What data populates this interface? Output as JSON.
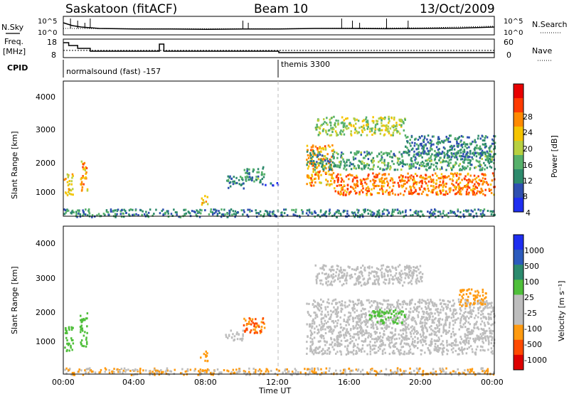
{
  "header": {
    "station": "Saskatoon (fitACF)",
    "beam": "Beam 10",
    "date": "13/Oct/2009"
  },
  "noise_panel": {
    "left_label": "N.Sky",
    "right_label": "N.Search",
    "left_ticks": [
      "10^5",
      "10^0"
    ],
    "right_ticks": [
      "10^5",
      "10^0"
    ]
  },
  "freq_panel": {
    "left_label_1": "Freq.",
    "left_label_2": "[MHz]",
    "right_label": "Nave",
    "left_ticks": [
      "18",
      "8"
    ],
    "right_ticks": [
      "60",
      "0"
    ]
  },
  "cpid_panel": {
    "label": "CPID",
    "mode_1": "normalsound (fast) -157",
    "mode_2": "themis 3300"
  },
  "x_axis": {
    "title": "Time UT",
    "ticks": [
      "00:00",
      "04:00",
      "08:00",
      "12:00",
      "16:00",
      "20:00",
      "00:00"
    ]
  },
  "power_panel": {
    "ylabel": "Slant Range [km]",
    "yticks": [
      "4000",
      "3000",
      "2000",
      "1000"
    ],
    "colorbar_title": "Power [dB]",
    "colorbar_ticks": [
      "28",
      "24",
      "20",
      "16",
      "12",
      "8",
      "4"
    ]
  },
  "velocity_panel": {
    "ylabel": "Slant Range [km]",
    "yticks": [
      "4000",
      "3000",
      "2000",
      "1000"
    ],
    "colorbar_title": "Velocity [m s⁻¹]",
    "colorbar_ticks": [
      "1000",
      "500",
      "100",
      "25",
      "-25",
      "-100",
      "-500",
      "-1000"
    ]
  },
  "chart_data": [
    {
      "type": "line",
      "title": "Saskatoon (fitACF) Beam 10 13/Oct/2009",
      "xlabel": "Time UT",
      "xlim": [
        0,
        24
      ],
      "series": [
        {
          "name": "N.Sky",
          "values": [
            [
              0,
              3.5
            ],
            [
              0.5,
              2.5
            ],
            [
              1,
              2
            ],
            [
              2,
              1.5
            ],
            [
              4,
              1.3
            ],
            [
              6,
              1.3
            ],
            [
              8,
              1.2
            ],
            [
              10,
              1.3
            ],
            [
              12,
              1.3
            ],
            [
              14,
              1.5
            ],
            [
              16,
              1.5
            ],
            [
              18,
              1.4
            ],
            [
              20,
              1.5
            ],
            [
              22,
              1.6
            ],
            [
              24,
              2
            ]
          ]
        },
        {
          "name": "N.Search",
          "values": [
            [
              0,
              1.2
            ],
            [
              4,
              1.1
            ],
            [
              8,
              1.1
            ],
            [
              12,
              1.1
            ],
            [
              16,
              1.3
            ],
            [
              20,
              1.4
            ],
            [
              24,
              2
            ]
          ]
        }
      ]
    },
    {
      "type": "line",
      "xlim": [
        0,
        24
      ],
      "series": [
        {
          "name": "Freq.",
          "values": [
            [
              0,
              18
            ],
            [
              0.3,
              16
            ],
            [
              0.8,
              14
            ],
            [
              1.5,
              12
            ],
            [
              5.3,
              12
            ],
            [
              5.35,
              17
            ],
            [
              5.6,
              12
            ],
            [
              10.2,
              12
            ],
            [
              10.3,
              12
            ],
            [
              12,
              11
            ],
            [
              24,
              11
            ]
          ]
        },
        {
          "name": "Nave",
          "values": [
            [
              0,
              25
            ],
            [
              24,
              25
            ]
          ]
        }
      ]
    },
    {
      "type": "heatmap",
      "title": "Power [dB]",
      "xlabel": "Time UT",
      "ylabel": "Slant Range [km]",
      "xlim": [
        0,
        24
      ],
      "ylim": [
        200,
        4500
      ],
      "colorbar": [
        4,
        8,
        12,
        16,
        20,
        24,
        28
      ],
      "regions": [
        {
          "t": [
            0.0,
            0.5
          ],
          "range": [
            900,
            1600
          ],
          "power": 20
        },
        {
          "t": [
            0.9,
            1.3
          ],
          "range": [
            1000,
            2000
          ],
          "power": 22
        },
        {
          "t": [
            0.0,
            24.0
          ],
          "range": [
            200,
            450
          ],
          "power": 10
        },
        {
          "t": [
            7.6,
            8.0
          ],
          "range": [
            600,
            900
          ],
          "power": 20
        },
        {
          "t": [
            9.0,
            10.0
          ],
          "range": [
            1100,
            1500
          ],
          "power": 10
        },
        {
          "t": [
            10.0,
            11.2
          ],
          "range": [
            1300,
            1800
          ],
          "power": 12
        },
        {
          "t": [
            11.0,
            12.0
          ],
          "range": [
            1200,
            1300
          ],
          "power": 6
        },
        {
          "t": [
            13.5,
            15.0
          ],
          "range": [
            1200,
            2500
          ],
          "power": 22
        },
        {
          "t": [
            15.0,
            24.0
          ],
          "range": [
            900,
            1600
          ],
          "power": 24
        },
        {
          "t": [
            13.5,
            24.0
          ],
          "range": [
            1700,
            2300
          ],
          "power": 12
        },
        {
          "t": [
            14.0,
            19.0
          ],
          "range": [
            2800,
            3400
          ],
          "power": 16
        },
        {
          "t": [
            19.0,
            24.0
          ],
          "range": [
            2100,
            2800
          ],
          "power": 10
        }
      ]
    },
    {
      "type": "heatmap",
      "title": "Velocity [m s⁻¹]",
      "xlabel": "Time UT",
      "ylabel": "Slant Range [km]",
      "xlim": [
        0,
        24
      ],
      "ylim": [
        200,
        4500
      ],
      "colorbar": [
        -1000,
        -500,
        -100,
        -25,
        25,
        100,
        500,
        1000
      ],
      "regions": [
        {
          "t": [
            0.0,
            0.5
          ],
          "range": [
            900,
            1600
          ],
          "velocity": 150
        },
        {
          "t": [
            0.9,
            1.3
          ],
          "range": [
            1000,
            2000
          ],
          "velocity": 150
        },
        {
          "t": [
            0.0,
            24.0
          ],
          "range": [
            200,
            400
          ],
          "velocity": -60
        },
        {
          "t": [
            7.6,
            8.0
          ],
          "range": [
            600,
            900
          ],
          "velocity": -250
        },
        {
          "t": [
            9.0,
            10.0
          ],
          "range": [
            1200,
            1500
          ],
          "velocity": 0
        },
        {
          "t": [
            10.0,
            11.2
          ],
          "range": [
            1400,
            1900
          ],
          "velocity": -300
        },
        {
          "t": [
            13.5,
            24.0
          ],
          "range": [
            800,
            2400
          ],
          "velocity": 0
        },
        {
          "t": [
            14.0,
            20.0
          ],
          "range": [
            2800,
            3400
          ],
          "velocity": 0
        },
        {
          "t": [
            17.0,
            19.0
          ],
          "range": [
            1700,
            2100
          ],
          "velocity": 150
        },
        {
          "t": [
            22.0,
            23.5
          ],
          "range": [
            2200,
            2700
          ],
          "velocity": -250
        }
      ]
    }
  ]
}
